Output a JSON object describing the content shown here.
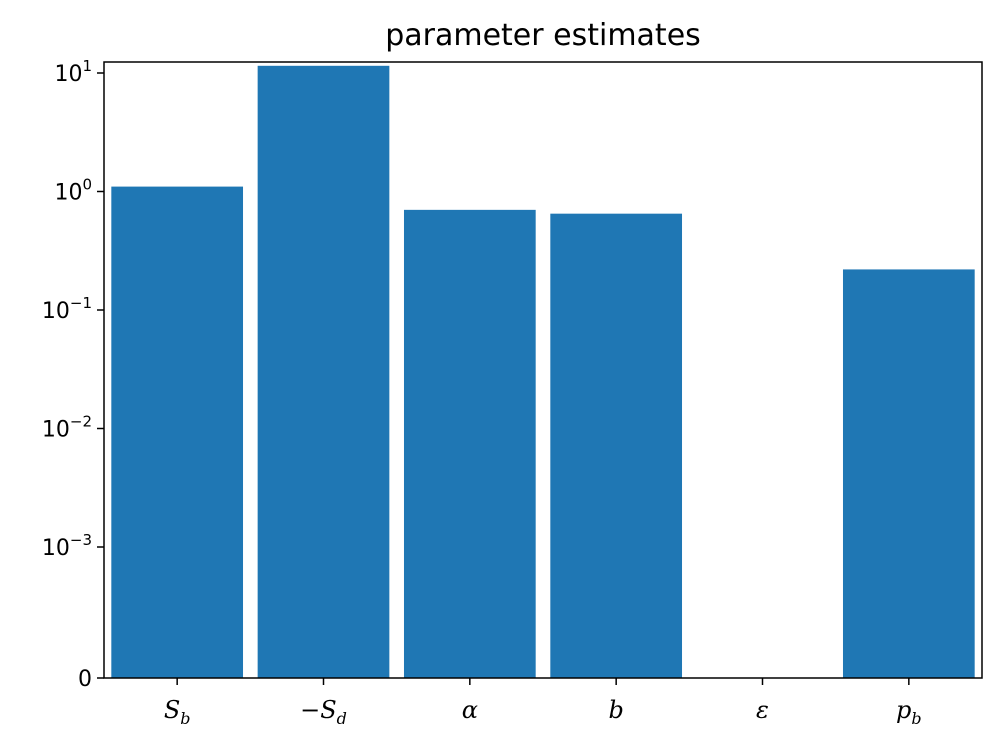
{
  "chart_data": {
    "type": "bar",
    "title": "parameter estimates",
    "xlabel": "",
    "ylabel": "",
    "yscale": "symlog",
    "ylim": [
      0,
      12
    ],
    "color": "#1f77b4",
    "grid": false,
    "categories": [
      {
        "main": "S",
        "sub": "b",
        "prefix": ""
      },
      {
        "main": "S",
        "sub": "d",
        "prefix": "−"
      },
      {
        "main": "α",
        "sub": "",
        "prefix": ""
      },
      {
        "main": "b",
        "sub": "",
        "prefix": ""
      },
      {
        "main": "ε",
        "sub": "",
        "prefix": ""
      },
      {
        "main": "p",
        "sub": "b",
        "prefix": ""
      }
    ],
    "values": [
      1.1,
      11.5,
      0.7,
      0.65,
      0,
      0.22
    ],
    "yticks": [
      {
        "value": 0,
        "base": "0",
        "exp": ""
      },
      {
        "value": 0.001,
        "base": "10",
        "exp": "−3"
      },
      {
        "value": 0.01,
        "base": "10",
        "exp": "−2"
      },
      {
        "value": 0.1,
        "base": "10",
        "exp": "−1"
      },
      {
        "value": 1,
        "base": "10",
        "exp": "0"
      },
      {
        "value": 10,
        "base": "10",
        "exp": "1"
      }
    ]
  }
}
